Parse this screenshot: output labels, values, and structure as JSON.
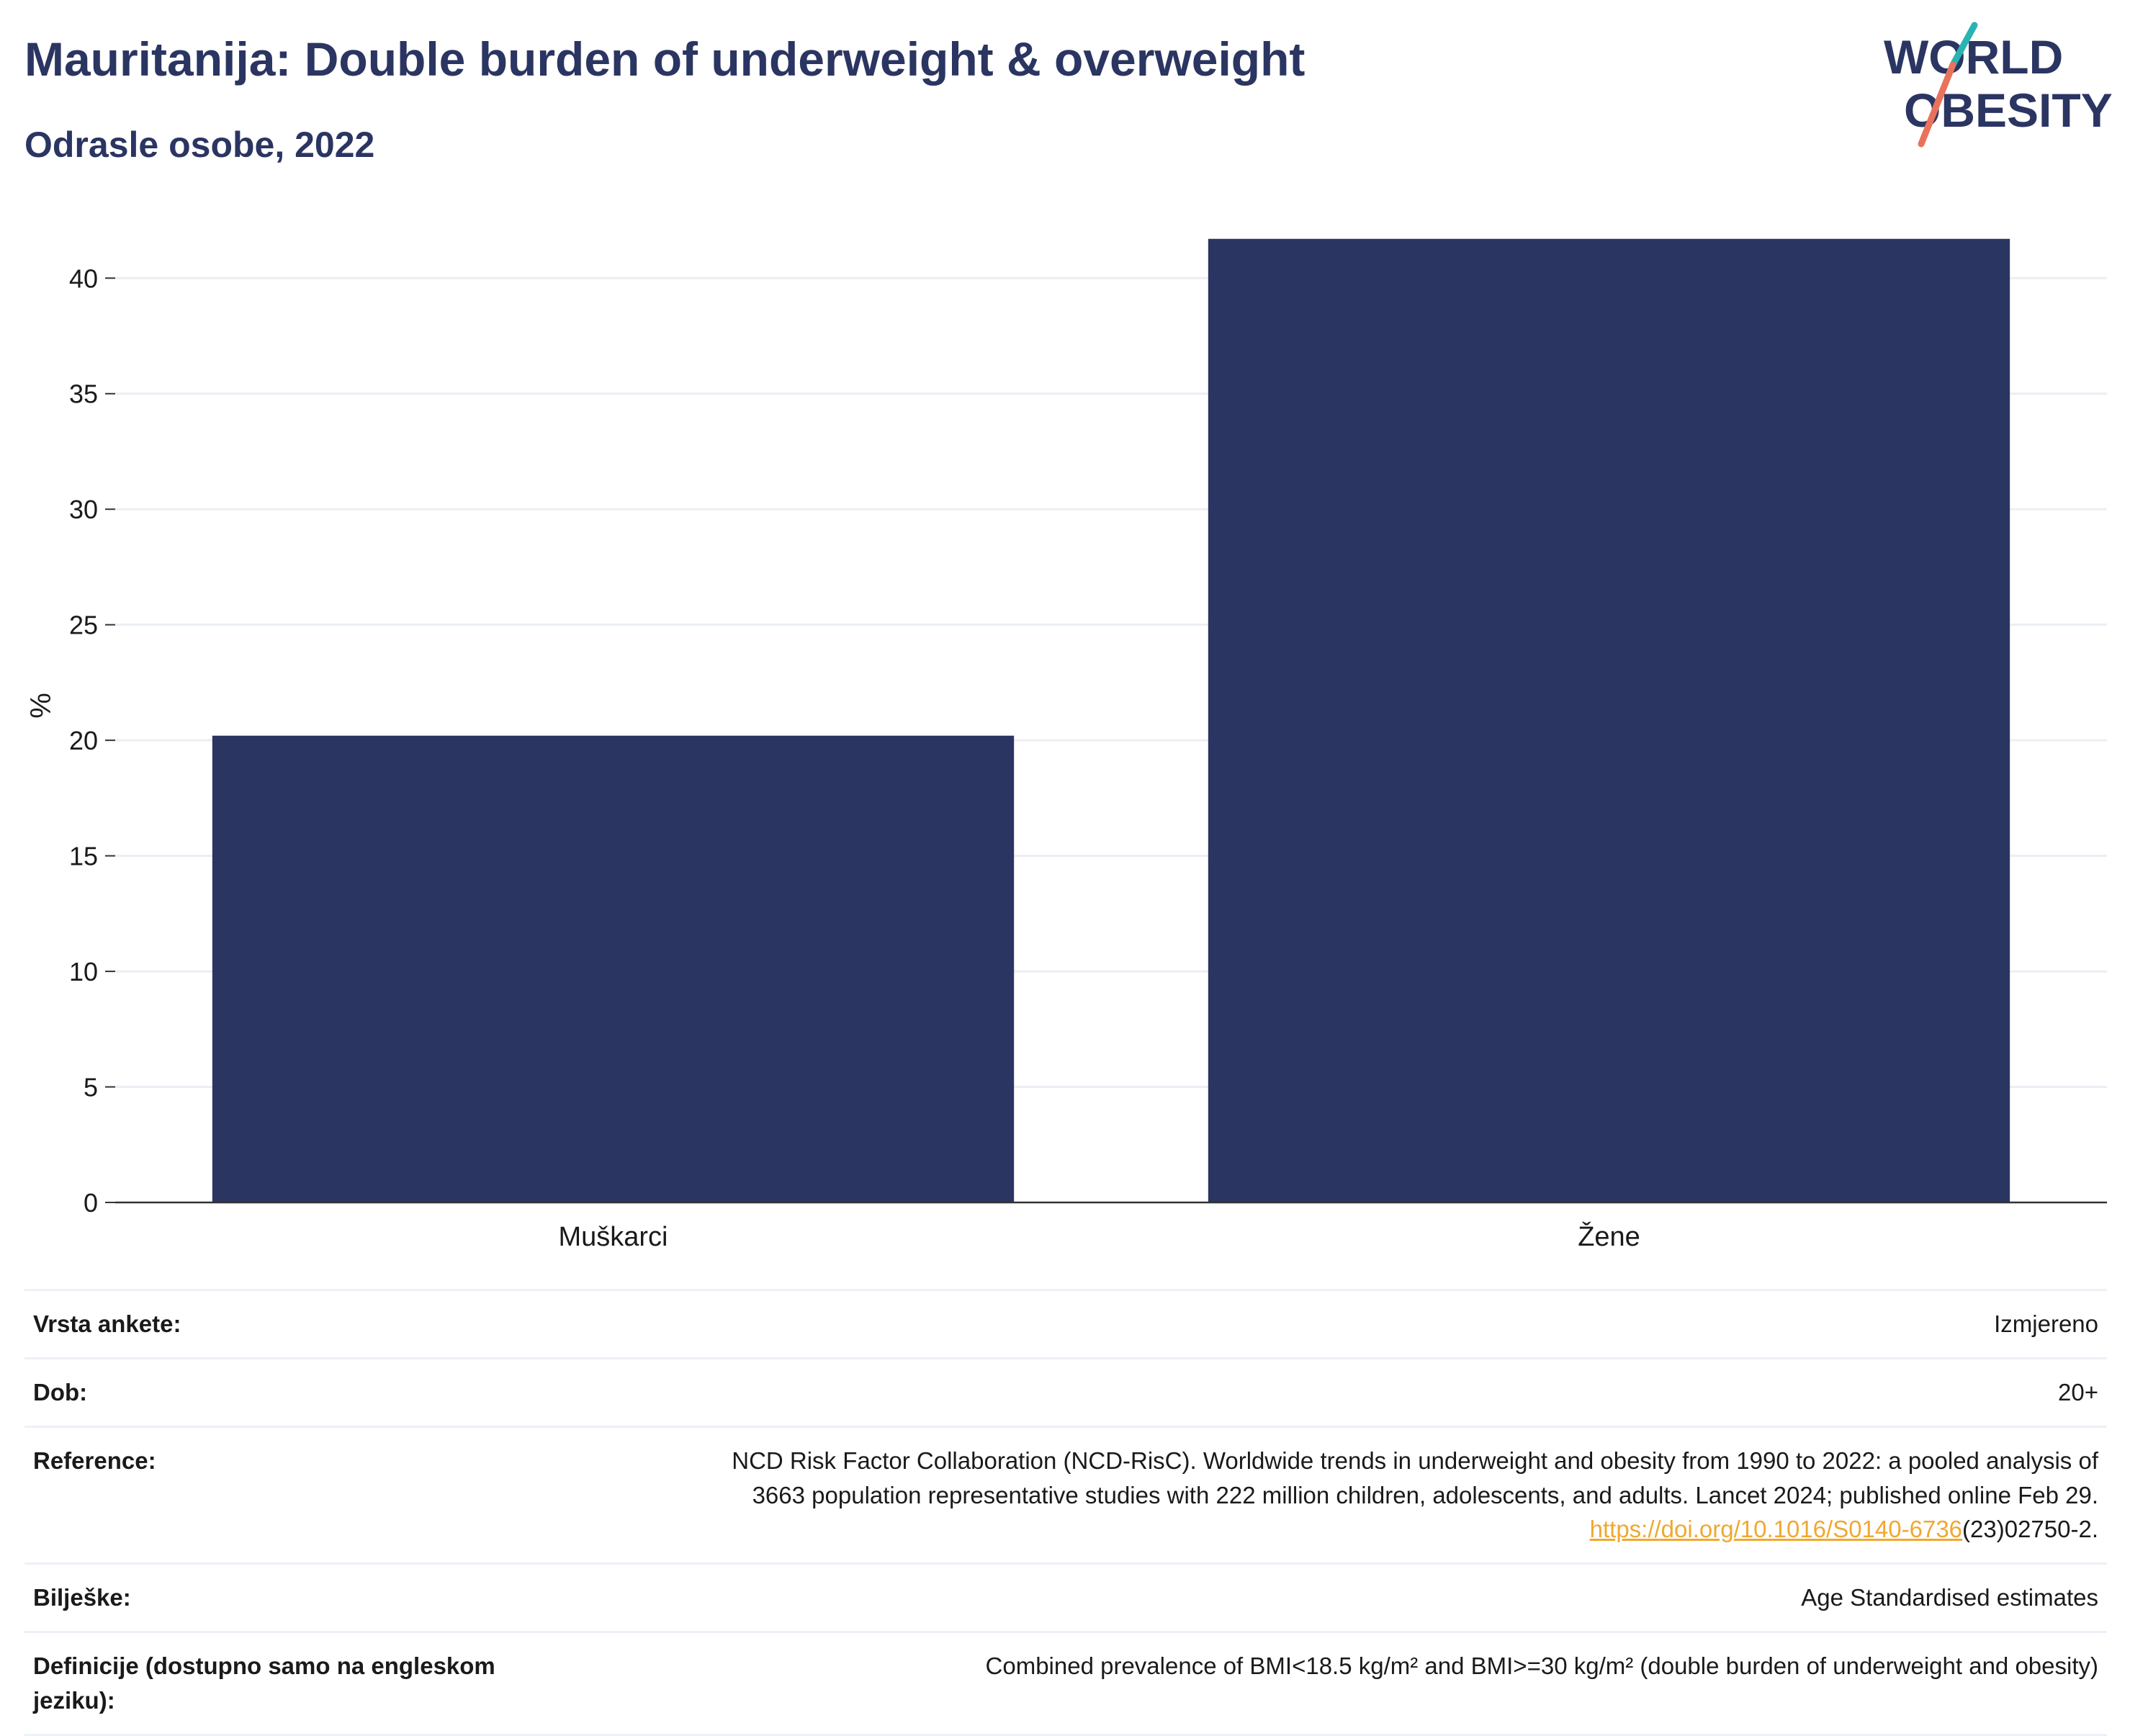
{
  "header": {
    "title": "Mauritanija: Double burden of underweight & overweight",
    "subtitle": "Odrasle osobe, 2022"
  },
  "logo": {
    "line1": "WORLD",
    "line2": "OBESITY",
    "text_color": "#2b3562",
    "accent_teal": "#2bb3b1",
    "accent_coral": "#e8735c"
  },
  "chart_data": {
    "type": "bar",
    "categories": [
      "Muškarci",
      "Žene"
    ],
    "values": [
      20.2,
      41.7
    ],
    "ylabel": "%",
    "xlabel": "",
    "ylim": [
      0,
      43
    ],
    "yticks": [
      0,
      5,
      10,
      15,
      20,
      25,
      30,
      35,
      40
    ],
    "bar_color": "#2b3562",
    "grid": true
  },
  "footer": {
    "rows": [
      {
        "key": "Vrsta ankete:",
        "value": "Izmjereno"
      },
      {
        "key": "Dob:",
        "value": "20+"
      },
      {
        "key": "Reference:",
        "value_line1": "NCD Risk Factor Collaboration (NCD-RisC). Worldwide trends in underweight and obesity from 1990 to 2022: a pooled analysis of",
        "value_line2": "3663 population representative studies with 222 million children, adolescents, and adults. Lancet 2024; published online Feb 29.",
        "value_link": "https://doi.org/10.1016/S0140-6736",
        "value_tail": "(23)02750-2."
      },
      {
        "key": "Bilješke:",
        "value": "Age Standardised estimates"
      },
      {
        "key": "Definicije (dostupno samo na engleskom jeziku):",
        "value": "Combined prevalence of BMI<18.5 kg/m² and BMI>=30 kg/m² (double burden of underweight and obesity)"
      }
    ]
  }
}
